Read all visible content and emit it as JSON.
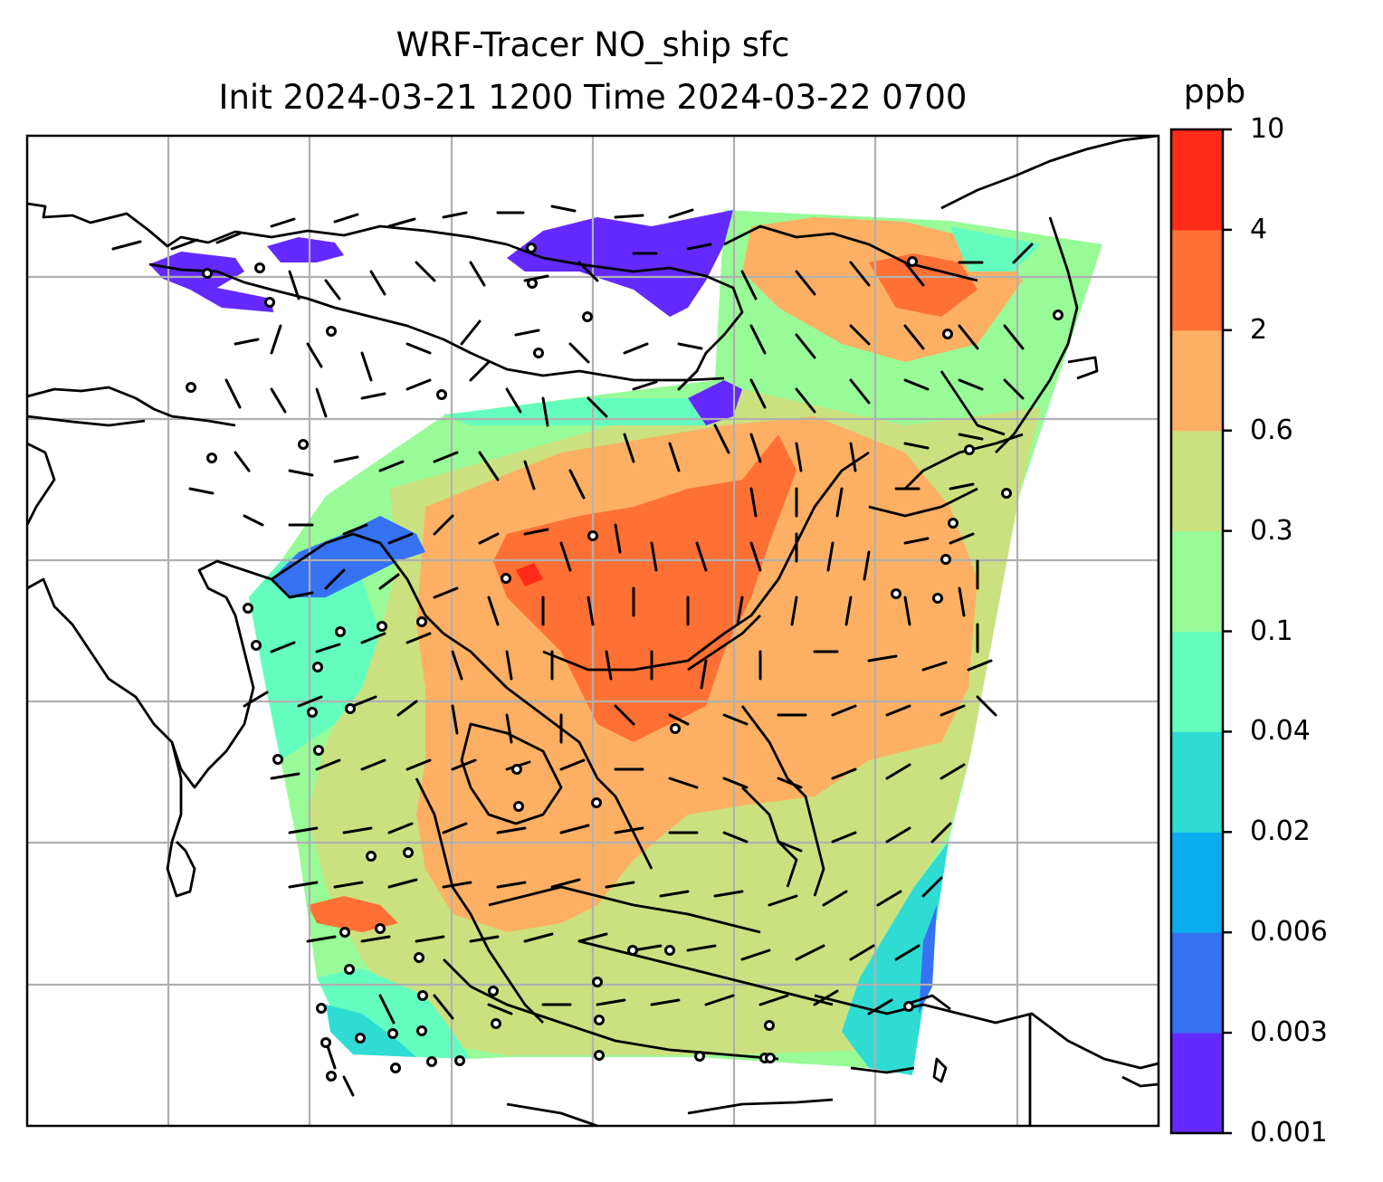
{
  "title": "WRF-Tracer NO_ship sfc",
  "subtitle": "Init 2024-03-21 1200 Time 2024-03-22 0700",
  "colorbar": {
    "unit": "ppb",
    "tick_labels": [
      "0.001",
      "0.003",
      "0.006",
      "0.02",
      "0.04",
      "0.1",
      "0.3",
      "0.6",
      "2",
      "4",
      "10"
    ],
    "colors": [
      "#6429ff",
      "#3572f4",
      "#08aded",
      "#2fdcd4",
      "#64fdc0",
      "#98fb98",
      "#cbe180",
      "#fdb064",
      "#ff7034",
      "#ff2a18"
    ]
  },
  "legend_colors": {
    "no_data_below_threshold": "#ffffff",
    "coastline": "#000000",
    "gridline": "#b0b0b0"
  },
  "map_elements": [
    "coastlines",
    "lat-lon gridlines",
    "wind barbs",
    "calm-wind circles"
  ]
}
